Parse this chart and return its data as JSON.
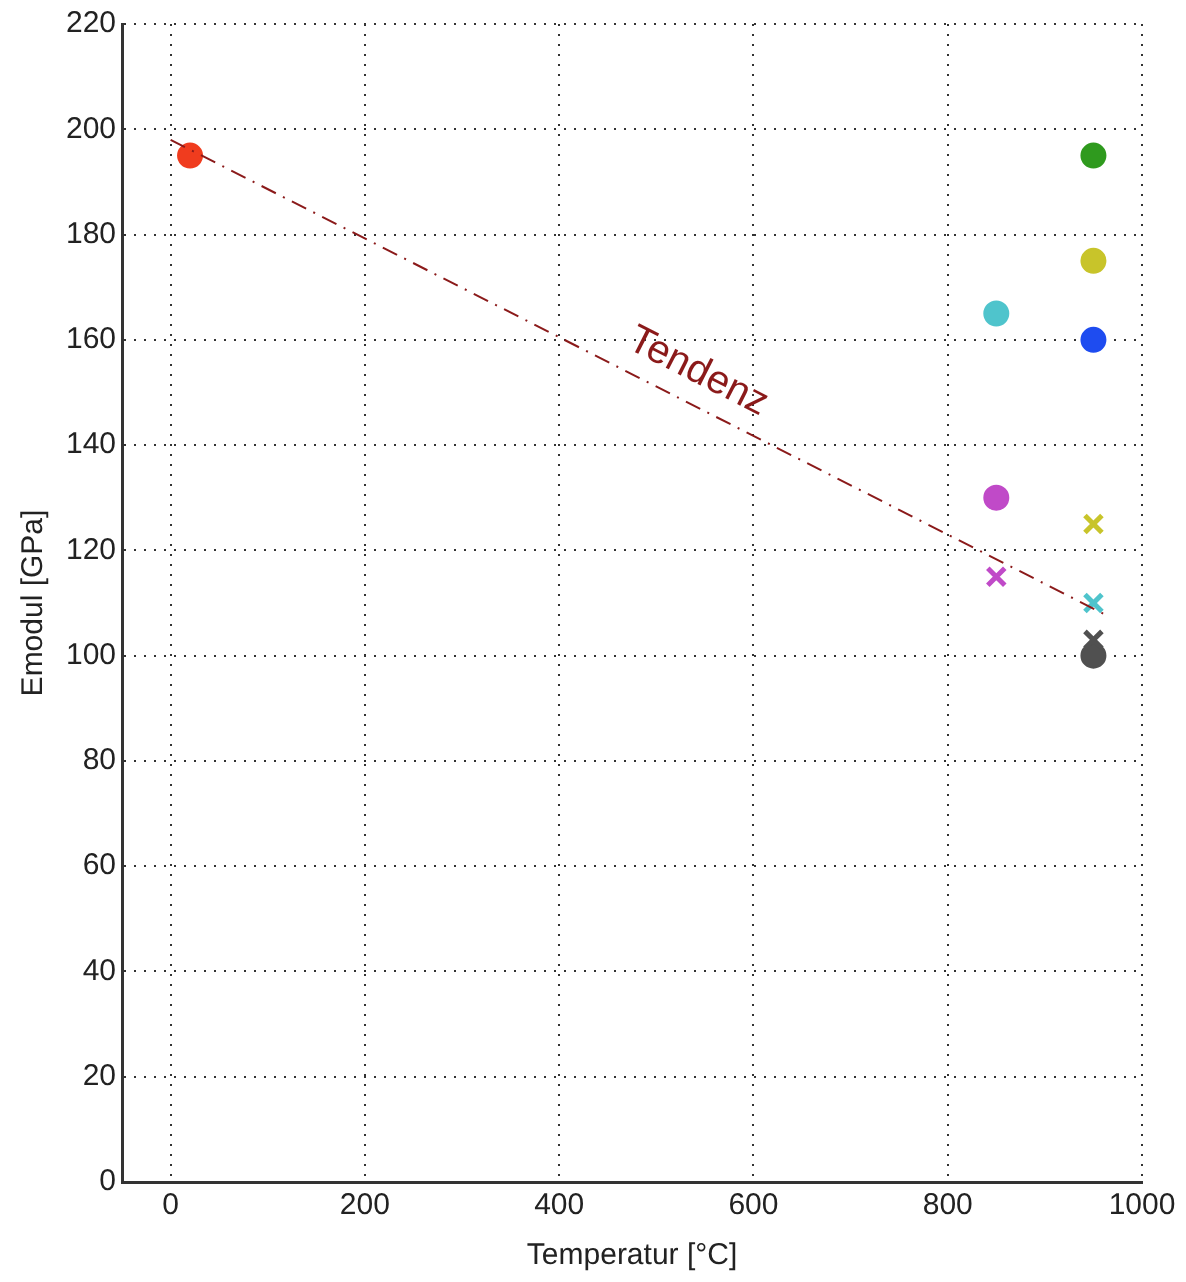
{
  "chart_data": {
    "type": "scatter",
    "xlabel": "Temperatur [°C]",
    "ylabel": "Emodul [GPa]",
    "xlim": [
      -50,
      1000
    ],
    "xticks": [
      0,
      200,
      400,
      600,
      800,
      1000
    ],
    "ylim": [
      0,
      220
    ],
    "yticks": [
      0,
      20,
      40,
      60,
      80,
      100,
      120,
      140,
      160,
      180,
      200,
      220
    ],
    "grid": true,
    "legend": false,
    "series": [
      {
        "type": "line",
        "color": "#8b1a1a",
        "x": [
          0,
          960
        ],
        "values": [
          198,
          108
        ],
        "marker": "none",
        "line_style": "dashed"
      },
      {
        "color": "#f03c1e",
        "x": [
          20
        ],
        "values": [
          195
        ],
        "marker": "circle"
      },
      {
        "color": "#4fc4cc",
        "x": [
          850
        ],
        "values": [
          165
        ],
        "marker": "circle"
      },
      {
        "color": "#c04ac8",
        "x": [
          850
        ],
        "values": [
          130
        ],
        "marker": "circle"
      },
      {
        "color": "#c04ac8",
        "x": [
          850
        ],
        "values": [
          115
        ],
        "marker": "cross"
      },
      {
        "color": "#2f9a1e",
        "x": [
          950
        ],
        "values": [
          195
        ],
        "marker": "circle"
      },
      {
        "color": "#c8c42a",
        "x": [
          950
        ],
        "values": [
          175
        ],
        "marker": "circle"
      },
      {
        "color": "#1e4cf0",
        "x": [
          950
        ],
        "values": [
          160
        ],
        "marker": "circle"
      },
      {
        "color": "#c8c42a",
        "x": [
          950
        ],
        "values": [
          125
        ],
        "marker": "cross"
      },
      {
        "color": "#4fc4cc",
        "x": [
          950
        ],
        "values": [
          110
        ],
        "marker": "cross"
      },
      {
        "color": "#505050",
        "x": [
          950
        ],
        "values": [
          103
        ],
        "marker": "cross"
      },
      {
        "color": "#505050",
        "x": [
          950
        ],
        "values": [
          100
        ],
        "marker": "circle"
      }
    ],
    "annotations": [
      "Tendenz"
    ]
  }
}
